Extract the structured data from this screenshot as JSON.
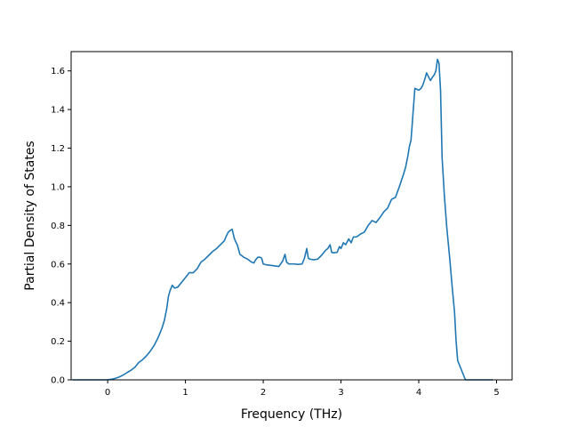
{
  "chart_data": {
    "type": "line",
    "title": "",
    "xlabel": "Frequency (THz)",
    "ylabel": "Partial Density of States",
    "xlim": [
      -0.47,
      5.2
    ],
    "ylim": [
      0.0,
      1.7
    ],
    "xticks": [
      0,
      1,
      2,
      3,
      4,
      5
    ],
    "xtick_labels": [
      "0",
      "1",
      "2",
      "3",
      "4",
      "5"
    ],
    "yticks": [
      0.0,
      0.2,
      0.4,
      0.6,
      0.8,
      1.0,
      1.2,
      1.4,
      1.6
    ],
    "ytick_labels": [
      "0.0",
      "0.2",
      "0.4",
      "0.6",
      "0.8",
      "1.0",
      "1.2",
      "1.4",
      "1.6"
    ],
    "grid": false,
    "legend": false,
    "color": "#1f77b4",
    "series": [
      {
        "x": [
          -0.45,
          -0.3,
          -0.1,
          0.0,
          0.05,
          0.1,
          0.15,
          0.2,
          0.25,
          0.3,
          0.35,
          0.38,
          0.4,
          0.45,
          0.5,
          0.55,
          0.6,
          0.65,
          0.7,
          0.73,
          0.76,
          0.78,
          0.8,
          0.83,
          0.86,
          0.9,
          0.95,
          1.0,
          1.05,
          1.1,
          1.15,
          1.2,
          1.25,
          1.3,
          1.35,
          1.4,
          1.45,
          1.5,
          1.52,
          1.55,
          1.58,
          1.6,
          1.63,
          1.67,
          1.7,
          1.75,
          1.8,
          1.85,
          1.88,
          1.9,
          1.93,
          1.96,
          1.98,
          2.0,
          2.05,
          2.1,
          2.15,
          2.2,
          2.25,
          2.28,
          2.3,
          2.33,
          2.4,
          2.45,
          2.5,
          2.53,
          2.56,
          2.58,
          2.6,
          2.65,
          2.7,
          2.75,
          2.8,
          2.83,
          2.86,
          2.88,
          2.9,
          2.95,
          2.98,
          3.0,
          3.03,
          3.06,
          3.1,
          3.13,
          3.16,
          3.2,
          3.25,
          3.3,
          3.35,
          3.4,
          3.45,
          3.5,
          3.55,
          3.6,
          3.65,
          3.7,
          3.75,
          3.8,
          3.83,
          3.86,
          3.88,
          3.9,
          3.95,
          4.0,
          4.03,
          4.05,
          4.08,
          4.1,
          4.15,
          4.18,
          4.2,
          4.22,
          4.24,
          4.26,
          4.28,
          4.3,
          4.33,
          4.36,
          4.4,
          4.43,
          4.46,
          4.48,
          4.5,
          4.6,
          4.8,
          4.95
        ],
        "y": [
          0.0,
          0.0,
          0.0,
          0.0,
          0.003,
          0.008,
          0.015,
          0.025,
          0.038,
          0.05,
          0.065,
          0.08,
          0.09,
          0.105,
          0.125,
          0.15,
          0.18,
          0.22,
          0.27,
          0.31,
          0.37,
          0.43,
          0.46,
          0.49,
          0.475,
          0.48,
          0.505,
          0.53,
          0.555,
          0.555,
          0.575,
          0.61,
          0.625,
          0.645,
          0.665,
          0.68,
          0.7,
          0.72,
          0.74,
          0.765,
          0.775,
          0.78,
          0.73,
          0.695,
          0.65,
          0.635,
          0.625,
          0.61,
          0.605,
          0.62,
          0.635,
          0.635,
          0.63,
          0.6,
          0.595,
          0.593,
          0.59,
          0.587,
          0.615,
          0.65,
          0.61,
          0.6,
          0.6,
          0.598,
          0.6,
          0.63,
          0.68,
          0.63,
          0.625,
          0.622,
          0.625,
          0.645,
          0.67,
          0.68,
          0.7,
          0.66,
          0.658,
          0.66,
          0.69,
          0.68,
          0.71,
          0.7,
          0.73,
          0.71,
          0.74,
          0.74,
          0.755,
          0.765,
          0.8,
          0.825,
          0.815,
          0.84,
          0.87,
          0.89,
          0.935,
          0.945,
          1.0,
          1.06,
          1.1,
          1.16,
          1.21,
          1.24,
          1.51,
          1.5,
          1.51,
          1.525,
          1.56,
          1.59,
          1.55,
          1.57,
          1.58,
          1.6,
          1.66,
          1.64,
          1.5,
          1.15,
          0.95,
          0.79,
          0.62,
          0.48,
          0.35,
          0.2,
          0.1,
          0.0,
          0.0,
          0.0
        ]
      }
    ]
  }
}
